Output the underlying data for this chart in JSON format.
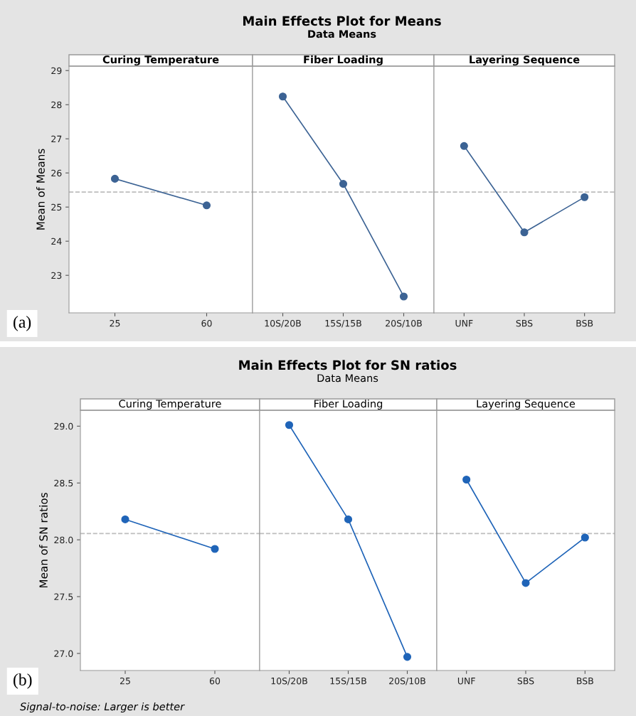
{
  "chart_data": [
    {
      "type": "line",
      "title": "Curing Temperature",
      "ylabel": "Mean of Means",
      "categories": [
        "25",
        "60"
      ],
      "series": [
        {
          "color": "#3c6394",
          "values": [
            25.83,
            25.05
          ]
        }
      ],
      "ylim": [
        21.9,
        29.13
      ],
      "yticks": [
        23,
        24,
        25,
        26,
        27,
        28,
        29
      ],
      "marker": "circle",
      "line_style": "solid",
      "grid": false,
      "ref_lines": [
        {
          "axis": "y",
          "value": 25.44,
          "color": "#bdbdbd",
          "line_style": "dashed"
        }
      ],
      "annotations": [
        "Main Effects Plot for Means",
        "Data Means",
        "(a)"
      ]
    },
    {
      "type": "line",
      "title": "Fiber Loading",
      "categories": [
        "10S/20B",
        "15S/15B",
        "20S/10B"
      ],
      "series": [
        {
          "color": "#3c6394",
          "values": [
            28.24,
            25.68,
            22.38
          ]
        }
      ],
      "ylim": [
        21.9,
        29.13
      ],
      "tick_labels": "x",
      "marker": "circle",
      "line_style": "solid",
      "grid": false,
      "ref_lines": [
        {
          "axis": "y",
          "value": 25.44,
          "color": "#bdbdbd",
          "line_style": "dashed"
        }
      ]
    },
    {
      "type": "line",
      "title": "Layering Sequence",
      "categories": [
        "UNF",
        "SBS",
        "BSB"
      ],
      "series": [
        {
          "color": "#3c6394",
          "values": [
            26.79,
            24.26,
            25.29
          ]
        }
      ],
      "ylim": [
        21.9,
        29.13
      ],
      "tick_labels": "x",
      "marker": "circle",
      "line_style": "solid",
      "grid": false,
      "ref_lines": [
        {
          "axis": "y",
          "value": 25.44,
          "color": "#bdbdbd",
          "line_style": "dashed"
        }
      ]
    },
    {
      "type": "line",
      "title": "Curing Temperature",
      "ylabel": "Mean of SN ratios",
      "categories": [
        "25",
        "60"
      ],
      "series": [
        {
          "color": "#1f64b8",
          "values": [
            28.18,
            27.92
          ]
        }
      ],
      "ylim": [
        26.85,
        29.14
      ],
      "yticks": [
        {
          "value": 27.0,
          "label": "27.0"
        },
        27.5,
        {
          "value": 28.0,
          "label": "28.0"
        },
        28.5,
        {
          "value": 29.0,
          "label": "29.0"
        }
      ],
      "marker": "circle",
      "line_style": "solid",
      "grid": false,
      "ref_lines": [
        {
          "axis": "y",
          "value": 28.055,
          "color": "#bdbdbd",
          "line_style": "dashed"
        }
      ],
      "annotations": [
        "Main Effects Plot for SN ratios",
        "Data Means",
        "(b)",
        "Signal-to-noise: Larger is better"
      ]
    },
    {
      "type": "line",
      "title": "Fiber Loading",
      "categories": [
        "10S/20B",
        "15S/15B",
        "20S/10B"
      ],
      "series": [
        {
          "color": "#1f64b8",
          "values": [
            29.01,
            28.18,
            26.97
          ]
        }
      ],
      "ylim": [
        26.85,
        29.14
      ],
      "tick_labels": "x",
      "marker": "circle",
      "line_style": "solid",
      "grid": false,
      "ref_lines": [
        {
          "axis": "y",
          "value": 28.055,
          "color": "#bdbdbd",
          "line_style": "dashed"
        }
      ]
    },
    {
      "type": "line",
      "title": "Layering Sequence",
      "categories": [
        "UNF",
        "SBS",
        "BSB"
      ],
      "series": [
        {
          "color": "#1f64b8",
          "values": [
            28.53,
            27.62,
            28.02
          ]
        }
      ],
      "ylim": [
        26.85,
        29.14
      ],
      "tick_labels": "x",
      "marker": "circle",
      "line_style": "solid",
      "grid": false,
      "ref_lines": [
        {
          "axis": "y",
          "value": 28.055,
          "color": "#bdbdbd",
          "line_style": "dashed"
        }
      ]
    }
  ]
}
